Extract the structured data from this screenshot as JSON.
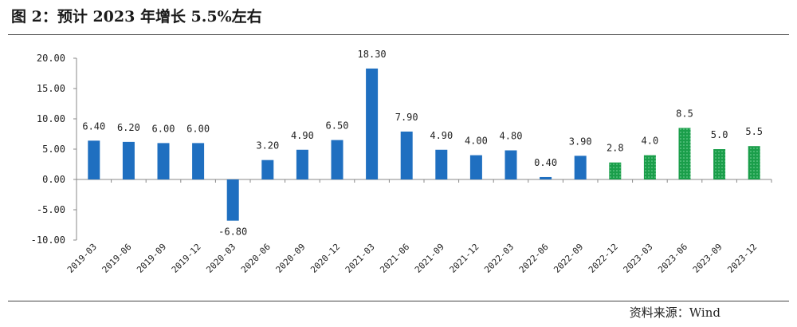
{
  "title": "图 2：预计 2023 年增长 5.5%左右",
  "source": "资料来源：Wind",
  "colors": {
    "actual": "#1f6fc0",
    "forecast": "#1a9e4a",
    "axis": "#888888"
  },
  "chart_data": {
    "type": "bar",
    "title": "",
    "xlabel": "",
    "ylabel": "",
    "ylim": [
      -10,
      20
    ],
    "yticks": [
      "20.00",
      "15.00",
      "10.00",
      "5.00",
      "0.00",
      "-5.00",
      "-10.00"
    ],
    "grid": false,
    "legend": "none",
    "categories": [
      "2019-03",
      "2019-06",
      "2019-09",
      "2019-12",
      "2020-03",
      "2020-06",
      "2020-09",
      "2020-12",
      "2021-03",
      "2021-06",
      "2021-09",
      "2021-12",
      "2022-03",
      "2022-06",
      "2022-09",
      "2022-12",
      "2023-03",
      "2023-06",
      "2023-09",
      "2023-12"
    ],
    "values": [
      6.4,
      6.2,
      6.0,
      6.0,
      -6.8,
      3.2,
      4.9,
      6.5,
      18.3,
      7.9,
      4.9,
      4.0,
      4.8,
      0.4,
      3.9,
      2.8,
      4.0,
      8.5,
      5.0,
      5.5
    ],
    "labels": [
      "6.40",
      "6.20",
      "6.00",
      "6.00",
      "-6.80",
      "3.20",
      "4.90",
      "6.50",
      "18.30",
      "7.90",
      "4.90",
      "4.00",
      "4.80",
      "0.40",
      "3.90",
      "2.8",
      "4.0",
      "8.5",
      "5.0",
      "5.5"
    ],
    "forecast_from_index": 15
  }
}
